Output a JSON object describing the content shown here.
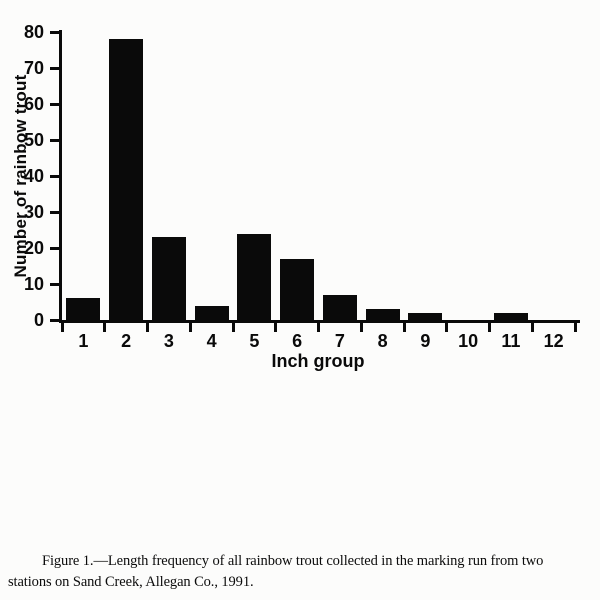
{
  "chart_data": {
    "type": "bar",
    "title": "",
    "xlabel": "Inch group",
    "ylabel": "Number of rainbow trout",
    "categories": [
      "1",
      "2",
      "3",
      "4",
      "5",
      "6",
      "7",
      "8",
      "9",
      "10",
      "11",
      "12"
    ],
    "values": [
      6,
      78,
      23,
      4,
      24,
      17,
      7,
      3,
      2,
      0,
      2,
      0
    ],
    "ylim": [
      0,
      80
    ],
    "yticks": [
      0,
      10,
      20,
      30,
      40,
      50,
      60,
      70,
      80
    ],
    "grid": false,
    "legend": "none",
    "bar_color": "#0a0a0a",
    "axis_color": "#0a0a0a"
  },
  "caption": {
    "line1": "Figure 1.—Length frequency of all rainbow trout collected in the marking run from two",
    "line2": "stations on Sand Creek, Allegan Co., 1991."
  }
}
